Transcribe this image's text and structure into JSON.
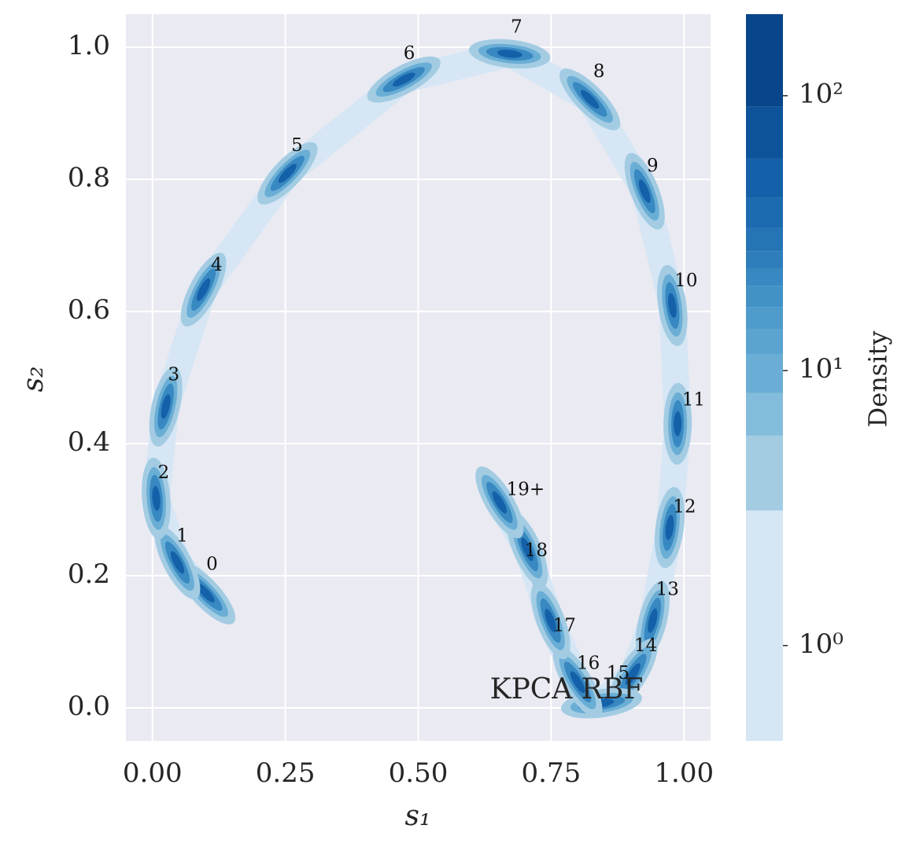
{
  "chart_data": {
    "type": "density",
    "xlabel": "s₁",
    "ylabel": "s₂",
    "method_label": "KPCA RBF",
    "xlim": [
      -0.05,
      1.05
    ],
    "ylim": [
      -0.05,
      1.05
    ],
    "xticks": [
      {
        "value": 0,
        "label": "0.00"
      },
      {
        "value": 0.25,
        "label": "0.25"
      },
      {
        "value": 0.5,
        "label": "0.50"
      },
      {
        "value": 0.75,
        "label": "0.75"
      },
      {
        "value": 1,
        "label": "1.00"
      }
    ],
    "yticks": [
      {
        "value": 0,
        "label": "0.0"
      },
      0.2,
      0.4,
      0.6,
      0.8,
      {
        "value": 1,
        "label": "1.0"
      }
    ],
    "grid": true,
    "density_ridge": {
      "x": [
        0.1,
        0.047,
        0.007,
        0.025,
        0.096,
        0.254,
        0.473,
        0.672,
        0.823,
        0.926,
        0.978,
        0.988,
        0.973,
        0.941,
        0.904,
        0.845,
        0.8,
        0.749,
        0.705,
        0.653
      ],
      "y": [
        0.174,
        0.22,
        0.317,
        0.456,
        0.633,
        0.809,
        0.951,
        0.99,
        0.921,
        0.782,
        0.609,
        0.43,
        0.273,
        0.132,
        0.051,
        0.007,
        0.039,
        0.132,
        0.24,
        0.311
      ]
    },
    "annotations": [
      {
        "text": "0",
        "x": 0.112,
        "y": 0.216
      },
      {
        "text": "1",
        "x": 0.056,
        "y": 0.259
      },
      {
        "text": "2",
        "x": 0.021,
        "y": 0.355
      },
      {
        "text": "3",
        "x": 0.04,
        "y": 0.503
      },
      {
        "text": "4",
        "x": 0.121,
        "y": 0.669
      },
      {
        "text": "5",
        "x": 0.272,
        "y": 0.85
      },
      {
        "text": "6",
        "x": 0.483,
        "y": 0.989
      },
      {
        "text": "7",
        "x": 0.685,
        "y": 1.029
      },
      {
        "text": "8",
        "x": 0.84,
        "y": 0.962
      },
      {
        "text": "9",
        "x": 0.941,
        "y": 0.819
      },
      {
        "text": "10",
        "x": 1.004,
        "y": 0.645
      },
      {
        "text": "11",
        "x": 1.018,
        "y": 0.465
      },
      {
        "text": "12",
        "x": 1.001,
        "y": 0.303
      },
      {
        "text": "13",
        "x": 0.969,
        "y": 0.178
      },
      {
        "text": "14",
        "x": 0.928,
        "y": 0.093
      },
      {
        "text": "15",
        "x": 0.876,
        "y": 0.051
      },
      {
        "text": "16",
        "x": 0.82,
        "y": 0.066
      },
      {
        "text": "17",
        "x": 0.775,
        "y": 0.123
      },
      {
        "text": "18",
        "x": 0.722,
        "y": 0.237
      },
      {
        "text": "19+",
        "x": 0.702,
        "y": 0.329
      }
    ],
    "colorbar": {
      "label": "Density",
      "log": true,
      "lim": [
        0.45,
        198
      ],
      "ticks": [
        {
          "value": 1,
          "label": "10⁰"
        },
        {
          "value": 10,
          "label": "10¹"
        },
        {
          "value": 100,
          "label": "10²"
        }
      ],
      "levels": [
        0.45,
        3.1,
        5.8,
        8.3,
        11.5,
        14.2,
        17,
        20.3,
        23.5,
        27.2,
        33.1,
        42.5,
        59.1,
        91.2,
        198
      ],
      "colors": [
        "#d6e6f4",
        "#a3cce3",
        "#84bcdb",
        "#6aaed6",
        "#5ba3d0",
        "#4f9bcb",
        "#4292c6",
        "#3888c1",
        "#2e7ebc",
        "#2574b5",
        "#1c6ab0",
        "#1561a9",
        "#0d539a",
        "#08458a"
      ]
    }
  }
}
